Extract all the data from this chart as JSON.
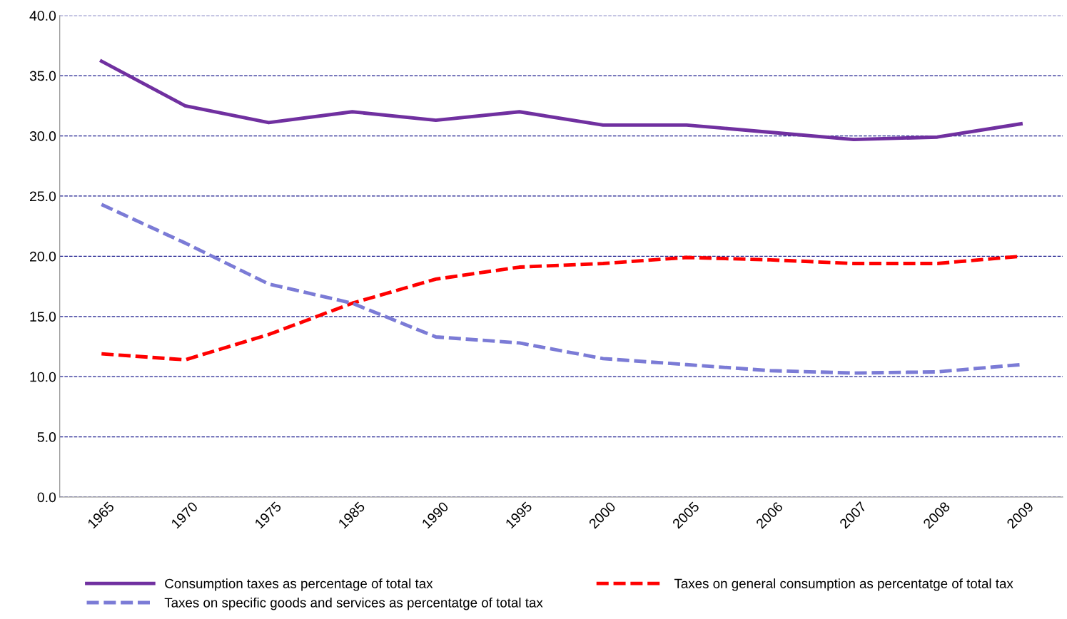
{
  "chart_data": {
    "type": "line",
    "categories": [
      "1965",
      "1970",
      "1975",
      "1985",
      "1990",
      "1995",
      "2000",
      "2005",
      "2006",
      "2007",
      "2008",
      "2009"
    ],
    "series": [
      {
        "name": "Consumption taxes as percentage of total tax",
        "color": "#7030a0",
        "line_style": "solid",
        "values": [
          36.2,
          32.5,
          31.1,
          32.0,
          31.3,
          32.0,
          30.9,
          30.9,
          30.3,
          29.7,
          29.9,
          31.0
        ]
      },
      {
        "name": "Taxes on general consumption as percentatge of total tax",
        "color": "#ff0000",
        "line_style": "dashed",
        "values": [
          11.9,
          11.4,
          13.5,
          16.1,
          18.1,
          19.1,
          19.4,
          19.9,
          19.7,
          19.4,
          19.4,
          20.0
        ]
      },
      {
        "name": "Taxes on specific goods and services as percentatge of total tax",
        "color": "#7b7bd6",
        "line_style": "dashed",
        "values": [
          24.3,
          21.1,
          17.7,
          16.1,
          13.3,
          12.8,
          11.5,
          11.0,
          10.5,
          10.3,
          10.4,
          11.0
        ]
      }
    ],
    "ylim": [
      0,
      40
    ],
    "yticks": [
      {
        "value": 0,
        "label": "0.0"
      },
      {
        "value": 5,
        "label": "5.0"
      },
      {
        "value": 10,
        "label": "10.0"
      },
      {
        "value": 15,
        "label": "15.0"
      },
      {
        "value": 20,
        "label": "20.0"
      },
      {
        "value": 25,
        "label": "25.0"
      },
      {
        "value": 30,
        "label": "30.0"
      },
      {
        "value": 35,
        "label": "35.0"
      },
      {
        "value": 40,
        "label": "40.0"
      }
    ],
    "grid": "y",
    "legend": "bottom",
    "marker": "none"
  }
}
